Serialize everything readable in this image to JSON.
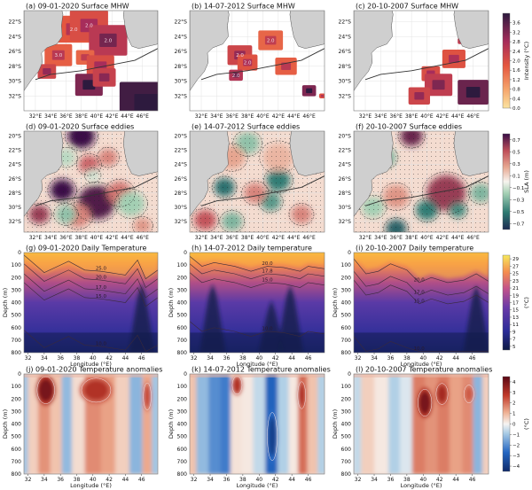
{
  "chart_data": [
    {
      "type": "heatmap",
      "panel": "a",
      "title": "(a) 09-01-2020 Surface MHW",
      "row": 0,
      "col": 0,
      "kind": "mhw",
      "xticks": [
        "32°E",
        "34°E",
        "36°E",
        "38°E",
        "40°E",
        "42°E",
        "44°E",
        "46°E"
      ],
      "yticks": [
        "22°S",
        "24°S",
        "26°S",
        "28°S",
        "30°S",
        "32°S"
      ],
      "contour_labels": [
        "2.0",
        "2.0",
        "2.0",
        "3.0"
      ],
      "blobs": [
        [
          37,
          23,
          2.2,
          1.8
        ],
        [
          39,
          22.5,
          2.5,
          2.0
        ],
        [
          41.5,
          24.5,
          2.5,
          2.5
        ],
        [
          35,
          26.5,
          1.8,
          1.7
        ],
        [
          38.5,
          26.8,
          1.2,
          1.6
        ],
        [
          40.5,
          28,
          1.8,
          2.0
        ],
        [
          39,
          30.5,
          1.8,
          3.2
        ],
        [
          41,
          29.5,
          1.5,
          2.3
        ],
        [
          46.5,
          33,
          3.5,
          3.8
        ],
        [
          33.5,
          28.7,
          1.2,
          2.2
        ]
      ]
    },
    {
      "type": "heatmap",
      "panel": "b",
      "title": "(b) 14-07-2012 Surface MHW",
      "row": 0,
      "col": 1,
      "kind": "mhw",
      "xticks": [
        "32°E",
        "34°E",
        "36°E",
        "38°E",
        "40°E",
        "42°E",
        "44°E",
        "46°E"
      ],
      "yticks": [
        "22°S",
        "24°S",
        "26°S",
        "28°S",
        "30°S",
        "32°S"
      ],
      "contour_labels": [
        "2.0",
        "2.0",
        "2.0",
        "2.0"
      ],
      "blobs": [
        [
          37,
          26.5,
          1.6,
          2.2
        ],
        [
          38,
          27.5,
          1.3,
          1.9
        ],
        [
          36.5,
          29.2,
          0.9,
          2.6
        ],
        [
          41,
          24.5,
          1.6,
          1.6
        ],
        [
          43,
          28,
          1.4,
          1.7
        ],
        [
          46,
          31.3,
          0.9,
          3.2
        ],
        [
          47.7,
          32,
          0.4,
          1.9
        ]
      ]
    },
    {
      "type": "heatmap",
      "panel": "c",
      "title": "(c) 20-10-2007 Surface MHW",
      "row": 0,
      "col": 2,
      "kind": "mhw",
      "xticks": [
        "32°E",
        "34°E",
        "36°E",
        "38°E",
        "40°E",
        "42°E",
        "44°E",
        "46°E"
      ],
      "yticks": [
        "22°S",
        "24°S",
        "26°S",
        "28°S",
        "30°S",
        "32°S"
      ],
      "contour_labels": [],
      "blobs": [
        [
          43.5,
          27,
          1.5,
          1.9
        ],
        [
          40.5,
          29,
          1.2,
          2.0
        ],
        [
          41.5,
          30.5,
          1.8,
          2.4
        ],
        [
          39,
          32,
          1.4,
          2.2
        ],
        [
          46,
          31.5,
          2.0,
          3.4
        ],
        [
          44.5,
          24.6,
          0.5,
          2.4
        ]
      ]
    },
    {
      "type": "heatmap",
      "panel": "d",
      "title": "(d) 09-01-2020 Surface eddies",
      "row": 1,
      "col": 0,
      "kind": "sla",
      "xticks": [
        "32°E",
        "34°E",
        "36°E",
        "38°E",
        "40°E",
        "42°E",
        "44°E",
        "46°E"
      ],
      "yticks": [
        "20°S",
        "22°S",
        "24°S",
        "26°S",
        "28°S",
        "30°S",
        "32°S"
      ],
      "eddies": [
        [
          38,
          20,
          1.6,
          0.8
        ],
        [
          39,
          24,
          1.2,
          0.45
        ],
        [
          41.5,
          23,
          1.1,
          0.35
        ],
        [
          35.5,
          27.6,
          1.4,
          0.8
        ],
        [
          40,
          29.3,
          2.2,
          0.75
        ],
        [
          43,
          28,
          1.5,
          0.4
        ],
        [
          32.5,
          31,
          1.2,
          0.6
        ],
        [
          37.5,
          31.2,
          1.5,
          0.35
        ],
        [
          46,
          32.6,
          1.0,
          0.3
        ],
        [
          36,
          23,
          1.1,
          -0.15
        ],
        [
          44.5,
          29.5,
          1.6,
          -0.2
        ],
        [
          36,
          31,
          1.2,
          -0.25
        ],
        [
          39.5,
          25.5,
          0.8,
          -0.1
        ]
      ]
    },
    {
      "type": "heatmap",
      "panel": "e",
      "title": "(e) 14-07-2012 Surface eddies",
      "row": 1,
      "col": 1,
      "kind": "sla",
      "xticks": [
        "32°E",
        "34°E",
        "36°E",
        "38°E",
        "40°E",
        "42°E",
        "44°E",
        "46°E"
      ],
      "yticks": [
        "20°S",
        "22°S",
        "24°S",
        "26°S",
        "28°S",
        "30°S",
        "32°S"
      ],
      "eddies": [
        [
          35,
          27.2,
          1.2,
          -0.55
        ],
        [
          42,
          26.2,
          1.4,
          -0.5
        ],
        [
          41,
          29.2,
          1.2,
          -0.4
        ],
        [
          36,
          32,
          1.2,
          -0.3
        ],
        [
          38,
          21,
          1.4,
          -0.25
        ],
        [
          39,
          28,
          1.3,
          0.35
        ],
        [
          32.5,
          31.8,
          1.3,
          0.5
        ],
        [
          45,
          31,
          1.2,
          0.35
        ],
        [
          36,
          23,
          1.5,
          0.25
        ],
        [
          42,
          23,
          1.8,
          0.2
        ]
      ]
    },
    {
      "type": "heatmap",
      "panel": "f",
      "title": "(f) 20-10-2007 Surface eddies",
      "row": 1,
      "col": 2,
      "kind": "sla",
      "xticks": [
        "32°E",
        "34°E",
        "36°E",
        "38°E",
        "40°E",
        "42°E",
        "44°E",
        "46°E"
      ],
      "yticks": [
        "20°S",
        "22°S",
        "24°S",
        "26°S",
        "28°S",
        "30°S",
        "32°S"
      ],
      "eddies": [
        [
          38,
          20,
          1.3,
          0.7
        ],
        [
          42.5,
          28,
          2.3,
          0.6
        ],
        [
          36,
          28.5,
          1.5,
          0.3
        ],
        [
          40,
          30.4,
          1.3,
          -0.5
        ],
        [
          44,
          30.4,
          1.0,
          -0.45
        ],
        [
          36,
          33,
          1.2,
          -0.6
        ],
        [
          34.5,
          23,
          1.3,
          -0.3
        ],
        [
          47,
          28,
          1.2,
          -0.3
        ],
        [
          33,
          30,
          1.3,
          -0.2
        ]
      ]
    },
    {
      "type": "heatmap",
      "panel": "g",
      "title": "(g) 09-01-2020 Daily Temperature",
      "row": 2,
      "col": 0,
      "kind": "temp",
      "xticks": [
        "32",
        "34",
        "36",
        "38",
        "40",
        "42",
        "44",
        "46"
      ],
      "yticks": [
        "0",
        "100",
        "200",
        "300",
        "400",
        "500",
        "600",
        "700",
        "800"
      ],
      "xlabel": "Longitude (°E)",
      "ylabel": "Depth (m)",
      "thermocline": [
        [
          31.5,
          60
        ],
        [
          34,
          200
        ],
        [
          36,
          140
        ],
        [
          37,
          110
        ],
        [
          39,
          180
        ],
        [
          41,
          190
        ],
        [
          43,
          210
        ],
        [
          44,
          220
        ],
        [
          45.5,
          100
        ],
        [
          46.5,
          250
        ],
        [
          48,
          180
        ]
      ],
      "contours": [
        {
          "level": "25.0",
          "offset": -40
        },
        {
          "level": "20.0",
          "offset": 30
        },
        {
          "level": "17.0",
          "offset": 110
        },
        {
          "level": "15.0",
          "offset": 180
        },
        {
          "level": "10.0",
          "offset": 560
        }
      ],
      "deep_bumps": [
        [
          46,
          250
        ]
      ]
    },
    {
      "type": "heatmap",
      "panel": "h",
      "title": "(h) 14-07-2012 Daily temperature",
      "row": 2,
      "col": 1,
      "kind": "temp",
      "xticks": [
        "32",
        "34",
        "36",
        "38",
        "40",
        "42",
        "44",
        "46"
      ],
      "yticks": [
        "0",
        "100",
        "200",
        "300",
        "400",
        "500",
        "600",
        "700",
        "800"
      ],
      "xlabel": "Longitude (°E)",
      "ylabel": "Depth (m)",
      "thermocline": [
        [
          31.5,
          30
        ],
        [
          33,
          110
        ],
        [
          34.5,
          80
        ],
        [
          37,
          110
        ],
        [
          39,
          150
        ],
        [
          41,
          110
        ],
        [
          43,
          120
        ],
        [
          45,
          150
        ],
        [
          46,
          110
        ],
        [
          48,
          130
        ]
      ],
      "contours": [
        {
          "level": "20.0",
          "offset": 0
        },
        {
          "level": "17.8",
          "offset": 60
        },
        {
          "level": "15.0",
          "offset": 130
        },
        {
          "level": "10.0",
          "offset": 520
        }
      ],
      "deep_bumps": [
        [
          41.5,
          380
        ],
        [
          43.8,
          260
        ],
        [
          34.3,
          250
        ]
      ]
    },
    {
      "type": "heatmap",
      "panel": "i",
      "title": "(i) 20-10-2007 Daily temperature",
      "row": 2,
      "col": 2,
      "kind": "temp",
      "xticks": [
        "32",
        "34",
        "36",
        "38",
        "40",
        "42",
        "44",
        "46"
      ],
      "yticks": [
        "0",
        "100",
        "200",
        "300",
        "400",
        "500",
        "600",
        "700",
        "800"
      ],
      "xlabel": "Longitude (°E)",
      "ylabel": "Depth (m)",
      "thermocline": [
        [
          31.5,
          50
        ],
        [
          33,
          170
        ],
        [
          34.5,
          150
        ],
        [
          36,
          90
        ],
        [
          38,
          140
        ],
        [
          39.5,
          240
        ],
        [
          41,
          200
        ],
        [
          43,
          240
        ],
        [
          45,
          220
        ],
        [
          46.5,
          170
        ],
        [
          48,
          230
        ]
      ],
      "contours": [
        {
          "level": "20.0",
          "offset": 0
        },
        {
          "level": "17.0",
          "offset": 100
        },
        {
          "level": "15.0",
          "offset": 170
        },
        {
          "level": "10.0",
          "offset": 620
        }
      ],
      "deep_bumps": [
        [
          46.5,
          260
        ]
      ]
    },
    {
      "type": "heatmap",
      "panel": "j",
      "title": "(j) 09-01-2020 Temperature anomalies",
      "row": 3,
      "col": 0,
      "kind": "anom",
      "xticks": [
        "32",
        "34",
        "36",
        "38",
        "40",
        "42",
        "44",
        "46"
      ],
      "yticks": [
        "0",
        "100",
        "200",
        "300",
        "400",
        "500",
        "600",
        "700",
        "800"
      ],
      "xlabel": "Longitude (°E)",
      "ylabel": "Depth (m)",
      "columns": [
        [
          31.5,
          -1.0
        ],
        [
          32.5,
          0.6
        ],
        [
          34,
          1.5
        ],
        [
          35.5,
          0.8
        ],
        [
          36.8,
          -1.2
        ],
        [
          38,
          0.4
        ],
        [
          40,
          1.6
        ],
        [
          42,
          1.3
        ],
        [
          43.5,
          0.6
        ],
        [
          45.5,
          -1.3
        ],
        [
          46.7,
          1.2
        ],
        [
          47.8,
          -1.0
        ]
      ],
      "cores": [
        [
          34.2,
          130,
          0.9,
          90,
          4.0
        ],
        [
          40.4,
          130,
          1.5,
          80,
          3.0
        ],
        [
          46.7,
          180,
          0.4,
          90,
          2.5
        ]
      ]
    },
    {
      "type": "heatmap",
      "panel": "k",
      "title": "(k) 14-07-2012 Temperature anomalies",
      "row": 3,
      "col": 1,
      "kind": "anom",
      "xticks": [
        "32",
        "34",
        "36",
        "38",
        "40",
        "42",
        "44",
        "46"
      ],
      "yticks": [
        "0",
        "100",
        "200",
        "300",
        "400",
        "500",
        "600",
        "700",
        "800"
      ],
      "xlabel": "Longitude (°E)",
      "ylabel": "Depth (m)",
      "columns": [
        [
          31.6,
          0.8
        ],
        [
          33,
          -1.2
        ],
        [
          34.6,
          -2.0
        ],
        [
          35.8,
          -2.3
        ],
        [
          37.2,
          0.3
        ],
        [
          38.5,
          0.2
        ],
        [
          40,
          -0.6
        ],
        [
          41.5,
          -2.8
        ],
        [
          43,
          -0.8
        ],
        [
          44.2,
          0.2
        ],
        [
          45.3,
          2.0
        ],
        [
          46.5,
          0.8
        ],
        [
          47.8,
          -0.8
        ]
      ],
      "cores": [
        [
          37.3,
          90,
          0.5,
          60,
          3.0
        ],
        [
          45.2,
          170,
          0.4,
          90,
          3.0
        ],
        [
          41.6,
          500,
          0.5,
          160,
          -3.8
        ]
      ]
    },
    {
      "type": "heatmap",
      "panel": "l",
      "title": "(l) 20-10-2007 Temperature anomalies",
      "row": 3,
      "col": 2,
      "kind": "anom",
      "xticks": [
        "32",
        "34",
        "36",
        "38",
        "40",
        "42",
        "44",
        "46"
      ],
      "yticks": [
        "0",
        "100",
        "200",
        "300",
        "400",
        "500",
        "600",
        "700",
        "800"
      ],
      "xlabel": "Longitude (°E)",
      "ylabel": "Depth (m)",
      "columns": [
        [
          31.8,
          -0.6
        ],
        [
          33,
          0.6
        ],
        [
          35,
          0.2
        ],
        [
          36.5,
          -0.8
        ],
        [
          37.8,
          -0.3
        ],
        [
          39.5,
          1.8
        ],
        [
          41,
          1.5
        ],
        [
          42.5,
          1.8
        ],
        [
          44,
          1.3
        ],
        [
          45.5,
          1.6
        ],
        [
          46.7,
          -1.3
        ],
        [
          47.8,
          0.6
        ]
      ],
      "cores": [
        [
          40.2,
          230,
          0.7,
          90,
          4.0
        ],
        [
          42.3,
          160,
          0.6,
          70,
          3.2
        ],
        [
          45.6,
          160,
          0.5,
          60,
          2.3
        ]
      ]
    }
  ],
  "colorbars": [
    {
      "row": 0,
      "label": "Intensity (°C)",
      "ticks": [
        "0.0",
        "0.4",
        "0.8",
        "1.2",
        "1.6",
        "2.0",
        "2.4",
        "2.8",
        "3.2",
        "3.6"
      ],
      "range": [
        0,
        4.0
      ]
    },
    {
      "row": 1,
      "label": "SLA (m)",
      "ticks": [
        "-0.7",
        "-0.5",
        "-0.3",
        "-0.1",
        "0.1",
        "0.3",
        "0.5",
        "0.7"
      ],
      "range": [
        -0.8,
        0.8
      ]
    },
    {
      "row": 2,
      "label": "(°C)",
      "ticks": [
        "5",
        "7",
        "9",
        "11",
        "13",
        "15",
        "17",
        "19",
        "21",
        "23",
        "25",
        "27",
        "29"
      ],
      "range": [
        4,
        30
      ]
    },
    {
      "row": 3,
      "label": "(°C)",
      "ticks": [
        "-4",
        "-3",
        "-2",
        "-1",
        "0",
        "1",
        "2",
        "3",
        "4"
      ],
      "range": [
        -4.5,
        4.5
      ]
    }
  ],
  "map_extent": {
    "lon": [
      30.5,
      48
    ],
    "lat_mhw": [
      34,
      20.5
    ],
    "lat_sla": [
      33.5,
      19.3
    ]
  },
  "temp_axes": {
    "lon": [
      31.5,
      48
    ],
    "depth": [
      0,
      800
    ]
  }
}
